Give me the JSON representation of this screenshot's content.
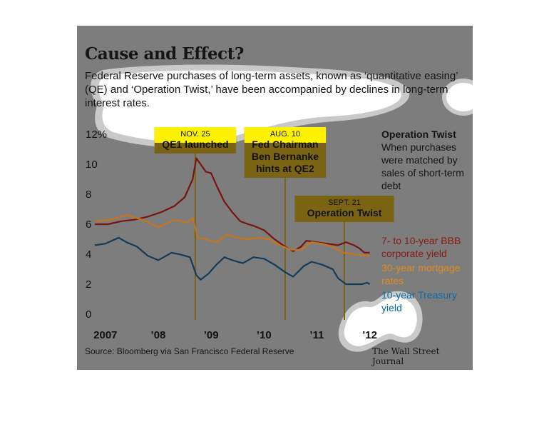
{
  "title": "Cause and Effect?",
  "subtitle": "Federal Reserve purchases of long-term assets, known as ‘quantitative easing’ (QE) and ‘Operation Twist,’ have been accompanied by declines in long-term interest rates.",
  "side_note": {
    "heading": "Operation Twist",
    "body": "When purchases were matched by sales of short-term debt"
  },
  "source": "Source: Bloomberg via San Francisco Federal Reserve",
  "credit": "The Wall Street Journal",
  "annotations": [
    {
      "date": "NOV. 25",
      "lines": [
        "QE1 launched"
      ],
      "x": 2008.9
    },
    {
      "date": "AUG. 10",
      "lines": [
        "Fed Chairman",
        "Ben Bernanke",
        "hints at QE2"
      ],
      "x": 2010.6
    },
    {
      "date": "SEPT. 21",
      "lines": [
        "Operation Twist"
      ],
      "x": 2011.72
    }
  ],
  "colors": {
    "bbb": "#7a1410",
    "mortgage": "#c8741c",
    "treasury": "#123c5a",
    "annotation": "#7a6414",
    "highlight": "#fff200",
    "background": "#7d7d7d"
  },
  "chart_data": {
    "type": "line",
    "title": "Cause and Effect?",
    "xlim": [
      2007.0,
      2012.3
    ],
    "ylim": [
      0,
      12
    ],
    "y_ticks": [
      0,
      2,
      4,
      6,
      8,
      10,
      12
    ],
    "y_tick_labels": [
      "0",
      "2",
      "4",
      "6",
      "8",
      "10",
      "12%"
    ],
    "x_ticks": [
      2007.2,
      2008.2,
      2009.2,
      2010.2,
      2011.2,
      2012.2
    ],
    "x_tick_labels": [
      "2007",
      "’08",
      "’09",
      "’10",
      "’11",
      "’12"
    ],
    "series": [
      {
        "name": "7- to 10-year BBB corporate yield",
        "key": "bbb",
        "x": [
          2007.0,
          2007.25,
          2007.5,
          2007.75,
          2008.0,
          2008.25,
          2008.5,
          2008.7,
          2008.85,
          2008.92,
          2009.0,
          2009.1,
          2009.2,
          2009.3,
          2009.45,
          2009.6,
          2009.75,
          2009.9,
          2010.0,
          2010.2,
          2010.4,
          2010.6,
          2010.75,
          2010.9,
          2011.0,
          2011.2,
          2011.4,
          2011.6,
          2011.75,
          2011.9,
          2012.0,
          2012.1,
          2012.2
        ],
        "y": [
          6.0,
          6.0,
          6.2,
          6.3,
          6.5,
          6.8,
          7.2,
          7.8,
          9.0,
          10.4,
          10.0,
          9.5,
          9.4,
          8.6,
          7.5,
          6.8,
          6.2,
          6.0,
          5.9,
          5.6,
          5.0,
          4.5,
          4.2,
          4.5,
          4.9,
          4.8,
          4.7,
          4.6,
          4.8,
          4.6,
          4.4,
          4.1,
          4.1
        ]
      },
      {
        "name": "30-year mortgage rates",
        "key": "mortgage",
        "x": [
          2007.0,
          2007.3,
          2007.6,
          2007.9,
          2008.2,
          2008.5,
          2008.75,
          2008.85,
          2008.95,
          2009.1,
          2009.3,
          2009.5,
          2009.7,
          2009.9,
          2010.1,
          2010.3,
          2010.5,
          2010.7,
          2010.9,
          2011.1,
          2011.3,
          2011.5,
          2011.7,
          2011.9,
          2012.1,
          2012.2
        ],
        "y": [
          6.2,
          6.3,
          6.6,
          6.3,
          5.8,
          6.3,
          6.1,
          6.4,
          5.1,
          5.0,
          4.8,
          5.3,
          5.1,
          5.0,
          5.1,
          5.0,
          4.6,
          4.3,
          4.3,
          4.8,
          4.7,
          4.5,
          4.1,
          4.0,
          3.9,
          3.9
        ]
      },
      {
        "name": "10-year Treasury yield",
        "key": "treasury",
        "x": [
          2007.0,
          2007.2,
          2007.45,
          2007.6,
          2007.8,
          2008.0,
          2008.2,
          2008.45,
          2008.6,
          2008.8,
          2008.92,
          2009.0,
          2009.15,
          2009.3,
          2009.45,
          2009.6,
          2009.8,
          2010.0,
          2010.2,
          2010.4,
          2010.6,
          2010.75,
          2010.95,
          2011.1,
          2011.3,
          2011.5,
          2011.6,
          2011.75,
          2011.9,
          2012.05,
          2012.15,
          2012.2
        ],
        "y": [
          4.6,
          4.7,
          5.1,
          4.8,
          4.5,
          3.9,
          3.6,
          4.1,
          4.0,
          3.8,
          2.6,
          2.3,
          2.7,
          3.3,
          3.8,
          3.6,
          3.4,
          3.8,
          3.7,
          3.3,
          2.8,
          2.5,
          3.2,
          3.5,
          3.3,
          3.0,
          2.4,
          2.0,
          2.0,
          2.0,
          2.1,
          2.0
        ]
      }
    ]
  }
}
